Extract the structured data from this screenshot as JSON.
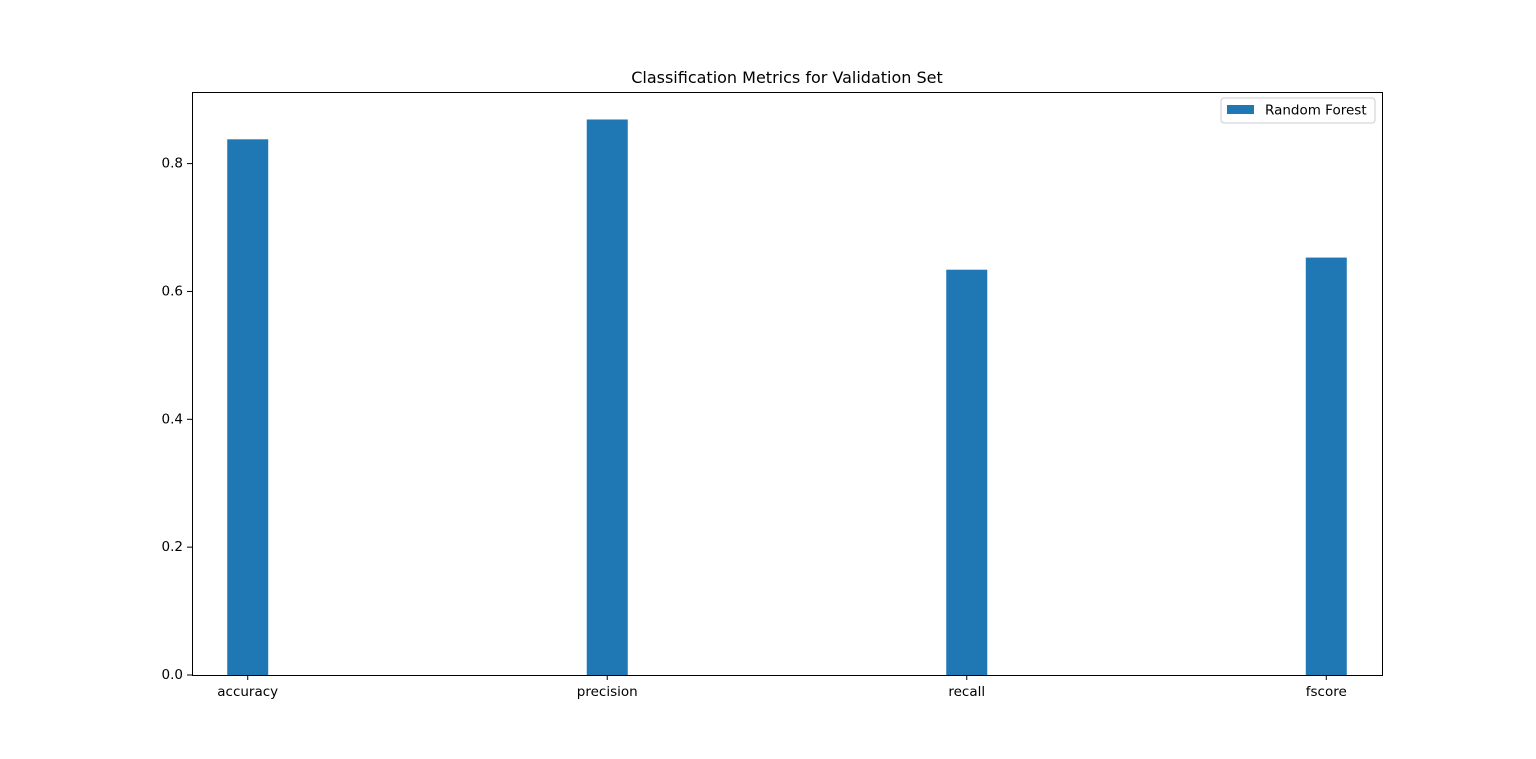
{
  "chart_data": {
    "type": "bar",
    "title": "Classification Metrics for Validation Set",
    "xlabel": "",
    "ylabel": "",
    "categories": [
      "accuracy",
      "precision",
      "recall",
      "fscore"
    ],
    "series": [
      {
        "name": "Random Forest",
        "color": "#1f77b4",
        "values": [
          0.838,
          0.869,
          0.634,
          0.653
        ]
      }
    ],
    "ylim": [
      0,
      0.912
    ],
    "yticks": [
      0.0,
      0.2,
      0.4,
      0.6,
      0.8
    ],
    "ytick_labels": [
      "0.0",
      "0.2",
      "0.4",
      "0.6",
      "0.8"
    ],
    "grid": false,
    "legend_position": "top-right"
  }
}
